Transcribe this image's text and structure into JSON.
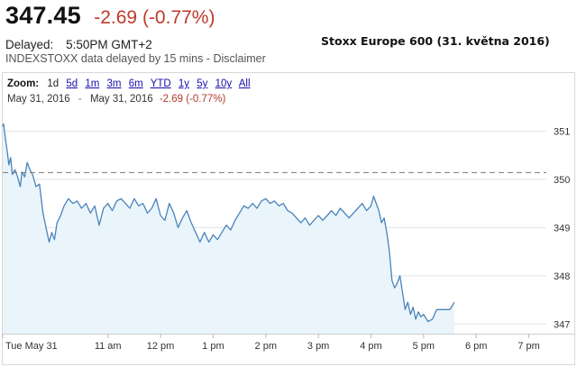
{
  "quote": {
    "price": "347.45",
    "change": "-2.69 (-0.77%)",
    "delayed_label": "Delayed:",
    "delayed_time": "5:50PM GMT+2",
    "source_text": "INDEXSTOXX data delayed by 15 mins - ",
    "disclaimer_link": "Disclaimer"
  },
  "caption": "Stoxx Europe 600 (31. května 2016)",
  "zoom": {
    "label": "Zoom:",
    "options": [
      "1d",
      "5d",
      "1m",
      "3m",
      "6m",
      "YTD",
      "1y",
      "5y",
      "10y",
      "All"
    ],
    "selected": "1d"
  },
  "range": {
    "start": "May 31, 2016",
    "separator": "-",
    "end": "May 31, 2016",
    "change": "-2.69 (-0.77%)"
  },
  "colors": {
    "down": "#c0392b",
    "line": "#4a84ba",
    "area": "#e9f4fb",
    "prev_close_line": "#777777"
  },
  "chart_data": {
    "type": "area",
    "title": "",
    "xlabel": "",
    "ylabel": "",
    "x_ticks": [
      "Tue May 31",
      "11 am",
      "12 pm",
      "1 pm",
      "2 pm",
      "3 pm",
      "4 pm",
      "5 pm",
      "6 pm",
      "7 pm"
    ],
    "y_ticks": [
      347,
      348,
      349,
      350,
      351
    ],
    "ylim": [
      346.8,
      351.4
    ],
    "xlim": [
      "09:00",
      "19:20"
    ],
    "previous_close": 350.14,
    "grid": "horizontal",
    "series": [
      {
        "points": [
          [
            "09:00",
            351.1
          ],
          [
            "09:01",
            351.15
          ],
          [
            "09:03",
            350.85
          ],
          [
            "09:05",
            350.6
          ],
          [
            "09:07",
            350.3
          ],
          [
            "09:09",
            350.45
          ],
          [
            "09:11",
            350.1
          ],
          [
            "09:14",
            350.2
          ],
          [
            "09:17",
            350.05
          ],
          [
            "09:20",
            349.85
          ],
          [
            "09:22",
            350.15
          ],
          [
            "09:25",
            350.05
          ],
          [
            "09:28",
            350.35
          ],
          [
            "09:31",
            350.2
          ],
          [
            "09:34",
            350.1
          ],
          [
            "09:38",
            349.85
          ],
          [
            "09:42",
            349.9
          ],
          [
            "09:46",
            349.3
          ],
          [
            "09:50",
            348.95
          ],
          [
            "09:53",
            348.7
          ],
          [
            "09:56",
            348.9
          ],
          [
            "09:59",
            348.75
          ],
          [
            "10:02",
            349.1
          ],
          [
            "10:06",
            349.25
          ],
          [
            "10:10",
            349.45
          ],
          [
            "10:15",
            349.6
          ],
          [
            "10:20",
            349.5
          ],
          [
            "10:25",
            349.55
          ],
          [
            "10:30",
            349.4
          ],
          [
            "10:35",
            349.5
          ],
          [
            "10:40",
            349.3
          ],
          [
            "10:45",
            349.45
          ],
          [
            "10:50",
            349.05
          ],
          [
            "10:55",
            349.4
          ],
          [
            "11:00",
            349.5
          ],
          [
            "11:05",
            349.35
          ],
          [
            "11:10",
            349.55
          ],
          [
            "11:15",
            349.6
          ],
          [
            "11:20",
            349.5
          ],
          [
            "11:25",
            349.4
          ],
          [
            "11:30",
            349.6
          ],
          [
            "11:35",
            349.45
          ],
          [
            "11:40",
            349.5
          ],
          [
            "11:45",
            349.3
          ],
          [
            "11:50",
            349.4
          ],
          [
            "11:55",
            349.6
          ],
          [
            "12:00",
            349.25
          ],
          [
            "12:05",
            349.15
          ],
          [
            "12:10",
            349.5
          ],
          [
            "12:15",
            349.3
          ],
          [
            "12:20",
            349.0
          ],
          [
            "12:25",
            349.2
          ],
          [
            "12:30",
            349.35
          ],
          [
            "12:35",
            349.1
          ],
          [
            "12:40",
            348.9
          ],
          [
            "12:45",
            348.7
          ],
          [
            "12:50",
            348.9
          ],
          [
            "12:55",
            348.7
          ],
          [
            "13:00",
            348.85
          ],
          [
            "13:05",
            348.75
          ],
          [
            "13:10",
            348.9
          ],
          [
            "13:15",
            349.05
          ],
          [
            "13:20",
            348.95
          ],
          [
            "13:25",
            349.15
          ],
          [
            "13:30",
            349.3
          ],
          [
            "13:35",
            349.45
          ],
          [
            "13:40",
            349.4
          ],
          [
            "13:45",
            349.5
          ],
          [
            "13:50",
            349.4
          ],
          [
            "13:55",
            349.55
          ],
          [
            "14:00",
            349.6
          ],
          [
            "14:05",
            349.5
          ],
          [
            "14:10",
            349.55
          ],
          [
            "14:15",
            349.45
          ],
          [
            "14:20",
            349.5
          ],
          [
            "14:25",
            349.35
          ],
          [
            "14:30",
            349.3
          ],
          [
            "14:35",
            349.2
          ],
          [
            "14:40",
            349.1
          ],
          [
            "14:45",
            349.2
          ],
          [
            "14:50",
            349.05
          ],
          [
            "14:55",
            349.15
          ],
          [
            "15:00",
            349.25
          ],
          [
            "15:05",
            349.15
          ],
          [
            "15:10",
            349.25
          ],
          [
            "15:15",
            349.35
          ],
          [
            "15:20",
            349.25
          ],
          [
            "15:25",
            349.4
          ],
          [
            "15:30",
            349.3
          ],
          [
            "15:35",
            349.2
          ],
          [
            "15:40",
            349.3
          ],
          [
            "15:45",
            349.4
          ],
          [
            "15:50",
            349.5
          ],
          [
            "15:55",
            349.35
          ],
          [
            "16:00",
            349.45
          ],
          [
            "16:03",
            349.65
          ],
          [
            "16:06",
            349.5
          ],
          [
            "16:09",
            349.35
          ],
          [
            "16:12",
            349.1
          ],
          [
            "16:15",
            349.2
          ],
          [
            "16:18",
            348.9
          ],
          [
            "16:21",
            348.5
          ],
          [
            "16:24",
            347.9
          ],
          [
            "16:27",
            347.75
          ],
          [
            "16:30",
            347.85
          ],
          [
            "16:33",
            348.0
          ],
          [
            "16:36",
            347.65
          ],
          [
            "16:39",
            347.3
          ],
          [
            "16:42",
            347.45
          ],
          [
            "16:45",
            347.2
          ],
          [
            "16:48",
            347.35
          ],
          [
            "16:51",
            347.1
          ],
          [
            "16:54",
            347.25
          ],
          [
            "16:57",
            347.15
          ],
          [
            "17:00",
            347.2
          ],
          [
            "17:05",
            347.05
          ],
          [
            "17:10",
            347.1
          ],
          [
            "17:15",
            347.3
          ],
          [
            "17:20",
            347.3
          ],
          [
            "17:25",
            347.3
          ],
          [
            "17:30",
            347.3
          ],
          [
            "17:35",
            347.45
          ]
        ]
      }
    ]
  }
}
